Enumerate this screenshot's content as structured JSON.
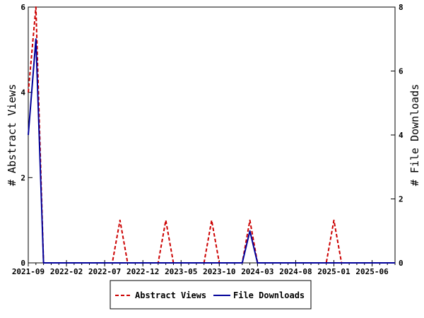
{
  "chart_data": {
    "type": "line",
    "left_axis": {
      "label": "# Abstract Views",
      "ylim": [
        0,
        6
      ],
      "ticks": [
        0,
        2,
        4,
        6
      ]
    },
    "right_axis": {
      "label": "# File Downloads",
      "ylim": [
        0,
        8
      ],
      "ticks": [
        0,
        2,
        4,
        6,
        8
      ]
    },
    "x_axis": {
      "start": "2021-09",
      "end": "2025-09",
      "tick_labels": [
        "2021-09",
        "2022-02",
        "2022-07",
        "2022-12",
        "2023-05",
        "2023-10",
        "2024-03",
        "2024-08",
        "2025-01",
        "2025-06"
      ]
    },
    "grid": false,
    "legend_position": "bottom",
    "series": [
      {
        "name": "Abstract Views",
        "axis": "left",
        "color": "#cc0000",
        "dash": "dashed",
        "points": [
          {
            "x": "2021-09",
            "y": 4
          },
          {
            "x": "2021-10",
            "y": 6
          },
          {
            "x": "2021-11",
            "y": 0
          },
          {
            "x": "2022-08",
            "y": 0
          },
          {
            "x": "2022-09",
            "y": 1
          },
          {
            "x": "2022-10",
            "y": 0
          },
          {
            "x": "2023-02",
            "y": 0
          },
          {
            "x": "2023-03",
            "y": 1
          },
          {
            "x": "2023-04",
            "y": 0
          },
          {
            "x": "2023-08",
            "y": 0
          },
          {
            "x": "2023-09",
            "y": 1
          },
          {
            "x": "2023-10",
            "y": 0
          },
          {
            "x": "2024-01",
            "y": 0
          },
          {
            "x": "2024-02",
            "y": 1
          },
          {
            "x": "2024-03",
            "y": 0
          },
          {
            "x": "2024-12",
            "y": 0
          },
          {
            "x": "2025-01",
            "y": 1
          },
          {
            "x": "2025-02",
            "y": 0
          },
          {
            "x": "2025-09",
            "y": 0
          }
        ]
      },
      {
        "name": "File Downloads",
        "axis": "right",
        "color": "#000099",
        "dash": "solid",
        "points": [
          {
            "x": "2021-09",
            "y": 4
          },
          {
            "x": "2021-10",
            "y": 7
          },
          {
            "x": "2021-11",
            "y": 0
          },
          {
            "x": "2024-01",
            "y": 0
          },
          {
            "x": "2024-02",
            "y": 1
          },
          {
            "x": "2024-03",
            "y": 0
          },
          {
            "x": "2025-09",
            "y": 0
          }
        ]
      }
    ]
  }
}
